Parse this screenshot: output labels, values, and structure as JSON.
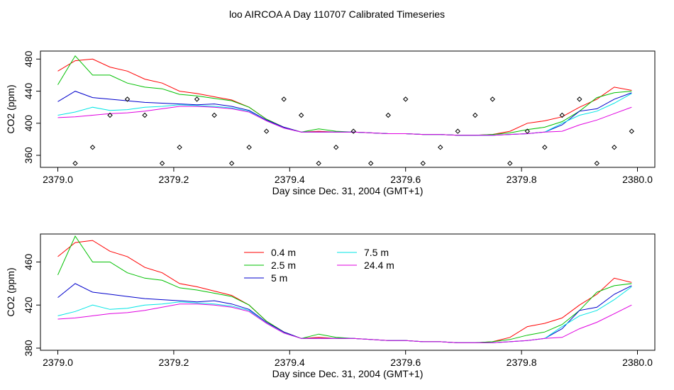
{
  "title": "loo AIRCOA A  Day 110707  Calibrated Timeseries",
  "chart_data": [
    {
      "type": "line",
      "xlabel": "Day since Dec. 31, 2004 (GMT+1)",
      "ylabel": "CO2 (ppm)",
      "xlim": [
        2378.97,
        2380.03
      ],
      "ylim": [
        345,
        490
      ],
      "xticks": [
        "2379.0",
        "2379.2",
        "2379.4",
        "2379.6",
        "2379.8",
        "2380.0"
      ],
      "yticks": [
        "360",
        "400",
        "440",
        "480"
      ],
      "series": [
        {
          "color": "#ff0000",
          "t": [
            2379.0,
            2379.03,
            2379.06,
            2379.09,
            2379.12,
            2379.15,
            2379.18,
            2379.21,
            2379.24,
            2379.27,
            2379.3,
            2379.33,
            2379.36,
            2379.39,
            2379.42,
            2379.45,
            2379.48,
            2379.51,
            2379.54,
            2379.57,
            2379.6,
            2379.63,
            2379.66,
            2379.69,
            2379.72,
            2379.75,
            2379.78,
            2379.81,
            2379.84,
            2379.87,
            2379.9,
            2379.93,
            2379.96,
            2379.99
          ],
          "y": [
            465,
            478,
            480,
            470,
            465,
            455,
            450,
            440,
            437,
            433,
            429,
            420,
            405,
            395,
            389,
            390,
            389,
            389,
            388,
            387,
            387,
            386,
            386,
            385,
            385,
            386,
            390,
            400,
            403,
            408,
            420,
            430,
            445,
            441
          ]
        },
        {
          "color": "#00c000",
          "t": [
            2379.0,
            2379.03,
            2379.06,
            2379.09,
            2379.12,
            2379.15,
            2379.18,
            2379.21,
            2379.24,
            2379.27,
            2379.3,
            2379.33,
            2379.36,
            2379.39,
            2379.42,
            2379.45,
            2379.48,
            2379.51,
            2379.54,
            2379.57,
            2379.6,
            2379.63,
            2379.66,
            2379.69,
            2379.72,
            2379.75,
            2379.78,
            2379.81,
            2379.84,
            2379.87,
            2379.9,
            2379.93,
            2379.96,
            2379.99
          ],
          "y": [
            448,
            484,
            460,
            460,
            450,
            445,
            443,
            436,
            434,
            431,
            428,
            420,
            405,
            395,
            389,
            393,
            390,
            389,
            388,
            387,
            387,
            386,
            386,
            385,
            385,
            386,
            388,
            392,
            395,
            402,
            415,
            432,
            438,
            440
          ]
        },
        {
          "color": "#0000cc",
          "t": [
            2379.0,
            2379.03,
            2379.06,
            2379.09,
            2379.12,
            2379.15,
            2379.18,
            2379.21,
            2379.24,
            2379.27,
            2379.3,
            2379.33,
            2379.36,
            2379.39,
            2379.42,
            2379.45,
            2379.48,
            2379.51,
            2379.54,
            2379.57,
            2379.6,
            2379.63,
            2379.66,
            2379.69,
            2379.72,
            2379.75,
            2379.78,
            2379.81,
            2379.84,
            2379.87,
            2379.9,
            2379.93,
            2379.96,
            2379.99
          ],
          "y": [
            427,
            440,
            432,
            430,
            428,
            426,
            425,
            424,
            423,
            424,
            421,
            416,
            404,
            395,
            389,
            389,
            389,
            389,
            388,
            387,
            387,
            386,
            386,
            385,
            385,
            385,
            386,
            387,
            389,
            398,
            415,
            418,
            430,
            438
          ]
        },
        {
          "color": "#00e5e5",
          "t": [
            2379.0,
            2379.03,
            2379.06,
            2379.09,
            2379.12,
            2379.15,
            2379.18,
            2379.21,
            2379.24,
            2379.27,
            2379.3,
            2379.33,
            2379.36,
            2379.39,
            2379.42,
            2379.45,
            2379.48,
            2379.51,
            2379.54,
            2379.57,
            2379.6,
            2379.63,
            2379.66,
            2379.69,
            2379.72,
            2379.75,
            2379.78,
            2379.81,
            2379.84,
            2379.87,
            2379.9,
            2379.93,
            2379.96,
            2379.99
          ],
          "y": [
            410,
            414,
            420,
            416,
            417,
            420,
            421,
            423,
            422,
            421,
            419,
            415,
            403,
            394,
            389,
            389,
            389,
            389,
            388,
            387,
            387,
            386,
            386,
            385,
            385,
            385,
            386,
            387,
            389,
            400,
            410,
            415,
            425,
            437
          ]
        },
        {
          "color": "#e000e0",
          "t": [
            2379.0,
            2379.03,
            2379.06,
            2379.09,
            2379.12,
            2379.15,
            2379.18,
            2379.21,
            2379.24,
            2379.27,
            2379.3,
            2379.33,
            2379.36,
            2379.39,
            2379.42,
            2379.45,
            2379.48,
            2379.51,
            2379.54,
            2379.57,
            2379.6,
            2379.63,
            2379.66,
            2379.69,
            2379.72,
            2379.75,
            2379.78,
            2379.81,
            2379.84,
            2379.87,
            2379.9,
            2379.93,
            2379.96,
            2379.99
          ],
          "y": [
            407,
            408,
            410,
            412,
            413,
            415,
            418,
            421,
            421,
            420,
            418,
            414,
            403,
            394,
            389,
            389,
            389,
            389,
            388,
            387,
            387,
            386,
            386,
            385,
            385,
            385,
            386,
            387,
            389,
            390,
            398,
            404,
            412,
            420
          ]
        }
      ],
      "points": {
        "t": [
          2379.03,
          2379.06,
          2379.09,
          2379.12,
          2379.15,
          2379.18,
          2379.21,
          2379.24,
          2379.27,
          2379.3,
          2379.33,
          2379.36,
          2379.39,
          2379.42,
          2379.45,
          2379.48,
          2379.51,
          2379.54,
          2379.57,
          2379.6,
          2379.63,
          2379.66,
          2379.69,
          2379.72,
          2379.75,
          2379.78,
          2379.81,
          2379.84,
          2379.87,
          2379.9,
          2379.93,
          2379.96,
          2379.99
        ],
        "y": [
          350,
          370,
          410,
          430,
          410,
          350,
          370,
          430,
          410,
          350,
          370,
          390,
          430,
          410,
          350,
          370,
          390,
          350,
          410,
          430,
          350,
          370,
          390,
          410,
          430,
          350,
          390,
          370,
          410,
          430,
          350,
          370,
          390
        ]
      }
    },
    {
      "type": "line",
      "xlabel": "Day since Dec. 31, 2004 (GMT+1)",
      "ylabel": "CO2 (ppm)",
      "xlim": [
        2378.97,
        2380.03
      ],
      "ylim": [
        378,
        486
      ],
      "xticks": [
        "2379.0",
        "2379.2",
        "2379.4",
        "2379.6",
        "2379.8",
        "2380.0"
      ],
      "yticks": [
        "380",
        "420",
        "460"
      ],
      "legend": [
        {
          "label": "0.4 m",
          "color": "#ff0000"
        },
        {
          "label": "2.5 m",
          "color": "#00c000"
        },
        {
          "label": "5 m",
          "color": "#0000cc"
        },
        {
          "label": "7.5 m",
          "color": "#00e5e5"
        },
        {
          "label": "24.4 m",
          "color": "#e000e0"
        }
      ],
      "series_ref": "same as chart 0 series"
    }
  ]
}
